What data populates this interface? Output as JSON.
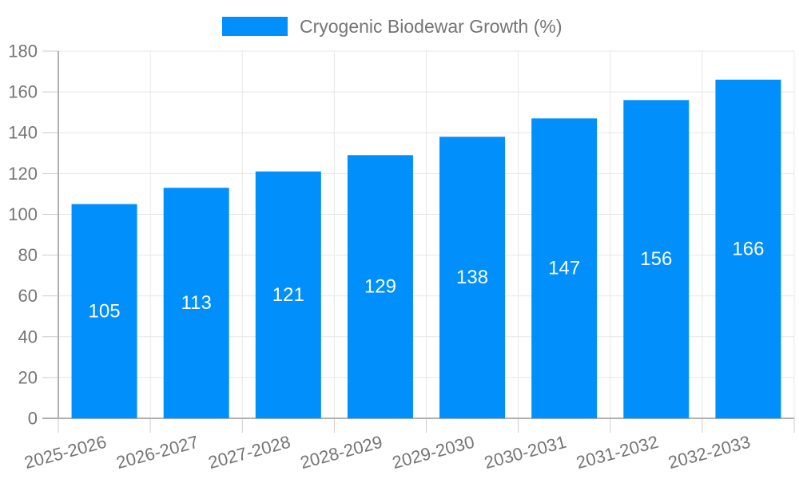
{
  "legend": {
    "label": "Cryogenic Biodewar Growth (%)"
  },
  "colors": {
    "bar": "#008FFB",
    "grid": "#e7e7e7",
    "axis_line": "#b0b0b0",
    "tick": "#cccccc",
    "label_text": "#757575",
    "bar_label_text": "#ffffff",
    "background": "#ffffff"
  },
  "chart_data": {
    "type": "bar",
    "title": "Cryogenic Biodewar Growth (%)",
    "categories": [
      "2025-2026",
      "2026-2027",
      "2027-2028",
      "2028-2029",
      "2029-2030",
      "2030-2031",
      "2031-2032",
      "2032-2033"
    ],
    "series": [
      {
        "name": "Cryogenic Biodewar Growth (%)",
        "values": [
          105,
          113,
          121,
          129,
          138,
          147,
          156,
          166
        ]
      }
    ],
    "xlabel": "",
    "ylabel": "",
    "ylim": [
      0,
      180
    ],
    "ytick_interval": 20,
    "yticks": [
      0,
      20,
      40,
      60,
      80,
      100,
      120,
      140,
      160,
      180
    ],
    "grid": true,
    "vertical_grid": true,
    "legend_position": "top-center",
    "bar_value_labels": "inside-center",
    "x_label_rotation_deg": -15
  }
}
